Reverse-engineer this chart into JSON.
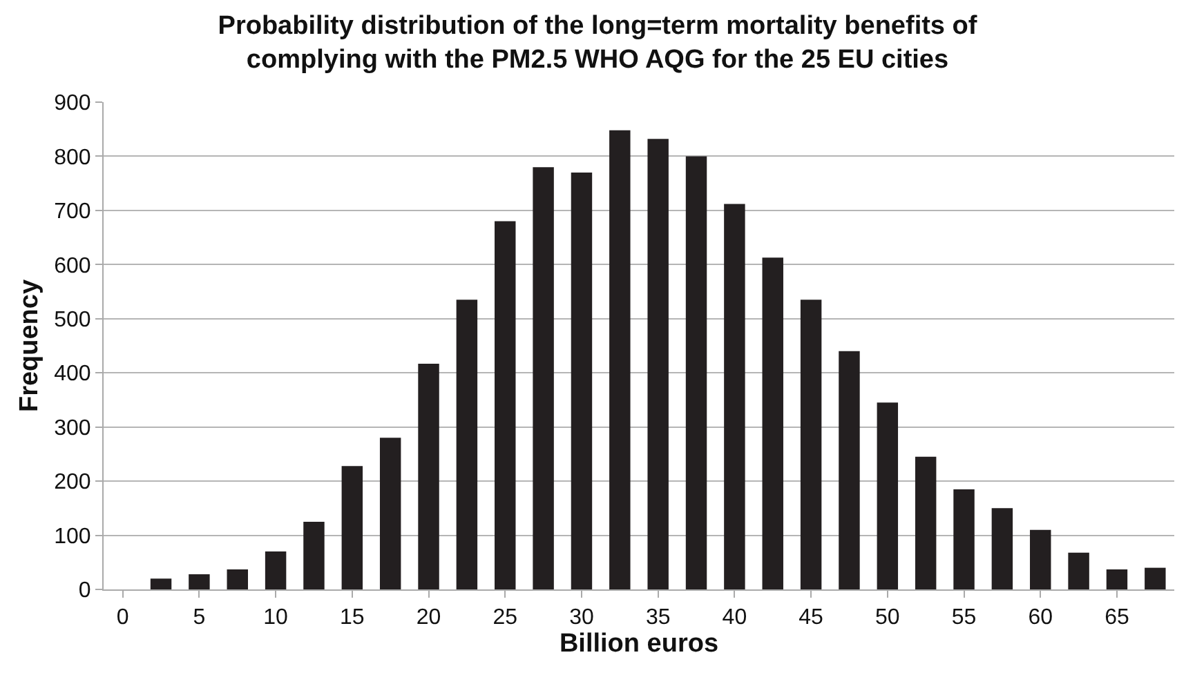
{
  "chart_data": {
    "type": "bar",
    "title": "Probability distribution of the long=term mortality benefits of complying with the PM2.5 WHO AQG for the 25 EU cities",
    "xlabel": "Billion euros",
    "ylabel": "Frequency",
    "categories": [
      "0",
      null,
      "5",
      null,
      "10",
      null,
      "15",
      null,
      "20",
      null,
      "25",
      null,
      "30",
      null,
      "35",
      null,
      "40",
      null,
      "45",
      null,
      "50",
      null,
      "55",
      null,
      "60",
      null,
      "65",
      null
    ],
    "values": [
      0,
      20,
      28,
      37,
      70,
      125,
      228,
      280,
      417,
      535,
      680,
      780,
      770,
      848,
      832,
      800,
      712,
      613,
      535,
      440,
      345,
      245,
      185,
      150,
      110,
      68,
      37,
      40
    ],
    "color": "#231f20",
    "ylim": [
      0,
      900
    ],
    "yticks": [
      0,
      100,
      200,
      300,
      400,
      500,
      600,
      700,
      800,
      900
    ],
    "grid": "y"
  }
}
